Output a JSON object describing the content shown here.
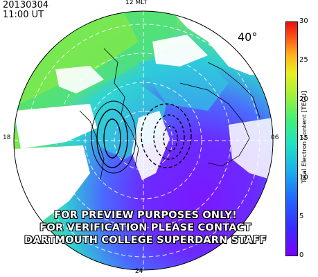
{
  "header": {
    "date": "20130304",
    "time": "11:00 UT"
  },
  "map": {
    "latitude_label": "40°",
    "mlt_labels": {
      "top": "12 MLT",
      "bottom": "24",
      "left": "18",
      "right": "06"
    }
  },
  "colorbar": {
    "title": "Total Electron Content [TECU]",
    "ticks": [
      "30",
      "25",
      "20",
      "15",
      "10",
      "5",
      "0"
    ],
    "colors": {
      "min": "#7a00ff",
      "low": "#1f6cff",
      "mid": "#1fe3c4",
      "midhigh": "#9cf03c",
      "high": "#ffb21c",
      "max": "#e81010"
    }
  },
  "watermark": {
    "line1": "FOR PREVIEW PURPOSES ONLY!",
    "line2": "FOR VERIFICATION PLEASE CONTACT",
    "line3": "DARTMOUTH COLLEGE SUPERDARN STAFF"
  }
}
